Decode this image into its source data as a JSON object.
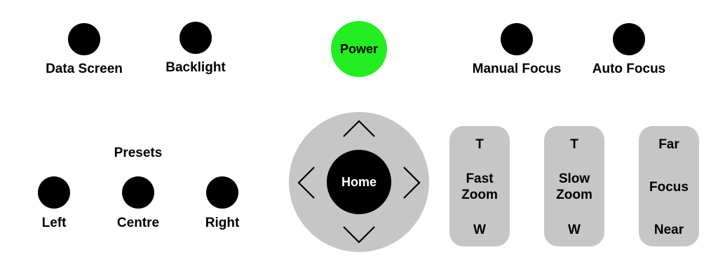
{
  "buttons": {
    "data_screen": "Data Screen",
    "backlight": "Backlight",
    "power": "Power",
    "manual_focus": "Manual Focus",
    "auto_focus": "Auto Focus"
  },
  "presets": {
    "title": "Presets",
    "left": "Left",
    "centre": "Centre",
    "right": "Right"
  },
  "dpad": {
    "home": "Home"
  },
  "fast_zoom": {
    "top": "T",
    "line1": "Fast",
    "line2": "Zoom",
    "bottom": "W"
  },
  "slow_zoom": {
    "top": "T",
    "line1": "Slow",
    "line2": "Zoom",
    "bottom": "W"
  },
  "focus": {
    "top": "Far",
    "label": "Focus",
    "bottom": "Near"
  },
  "colors": {
    "power_on": "#22ee22",
    "control_grey": "#c6c6c6",
    "button_black": "#000000"
  }
}
